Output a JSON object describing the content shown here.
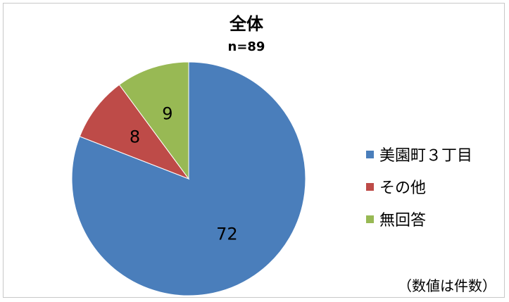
{
  "chart_data": {
    "type": "pie",
    "title": "全体",
    "subtitle": "n=89",
    "legend_position": "right",
    "note": "（数値は件数）",
    "slices": [
      {
        "name": "美園町３丁目",
        "value": 72,
        "color": "#4a7ebb"
      },
      {
        "name": "その他",
        "value": 8,
        "color": "#be4b48"
      },
      {
        "name": "無回答",
        "value": 9,
        "color": "#98b954"
      }
    ]
  }
}
